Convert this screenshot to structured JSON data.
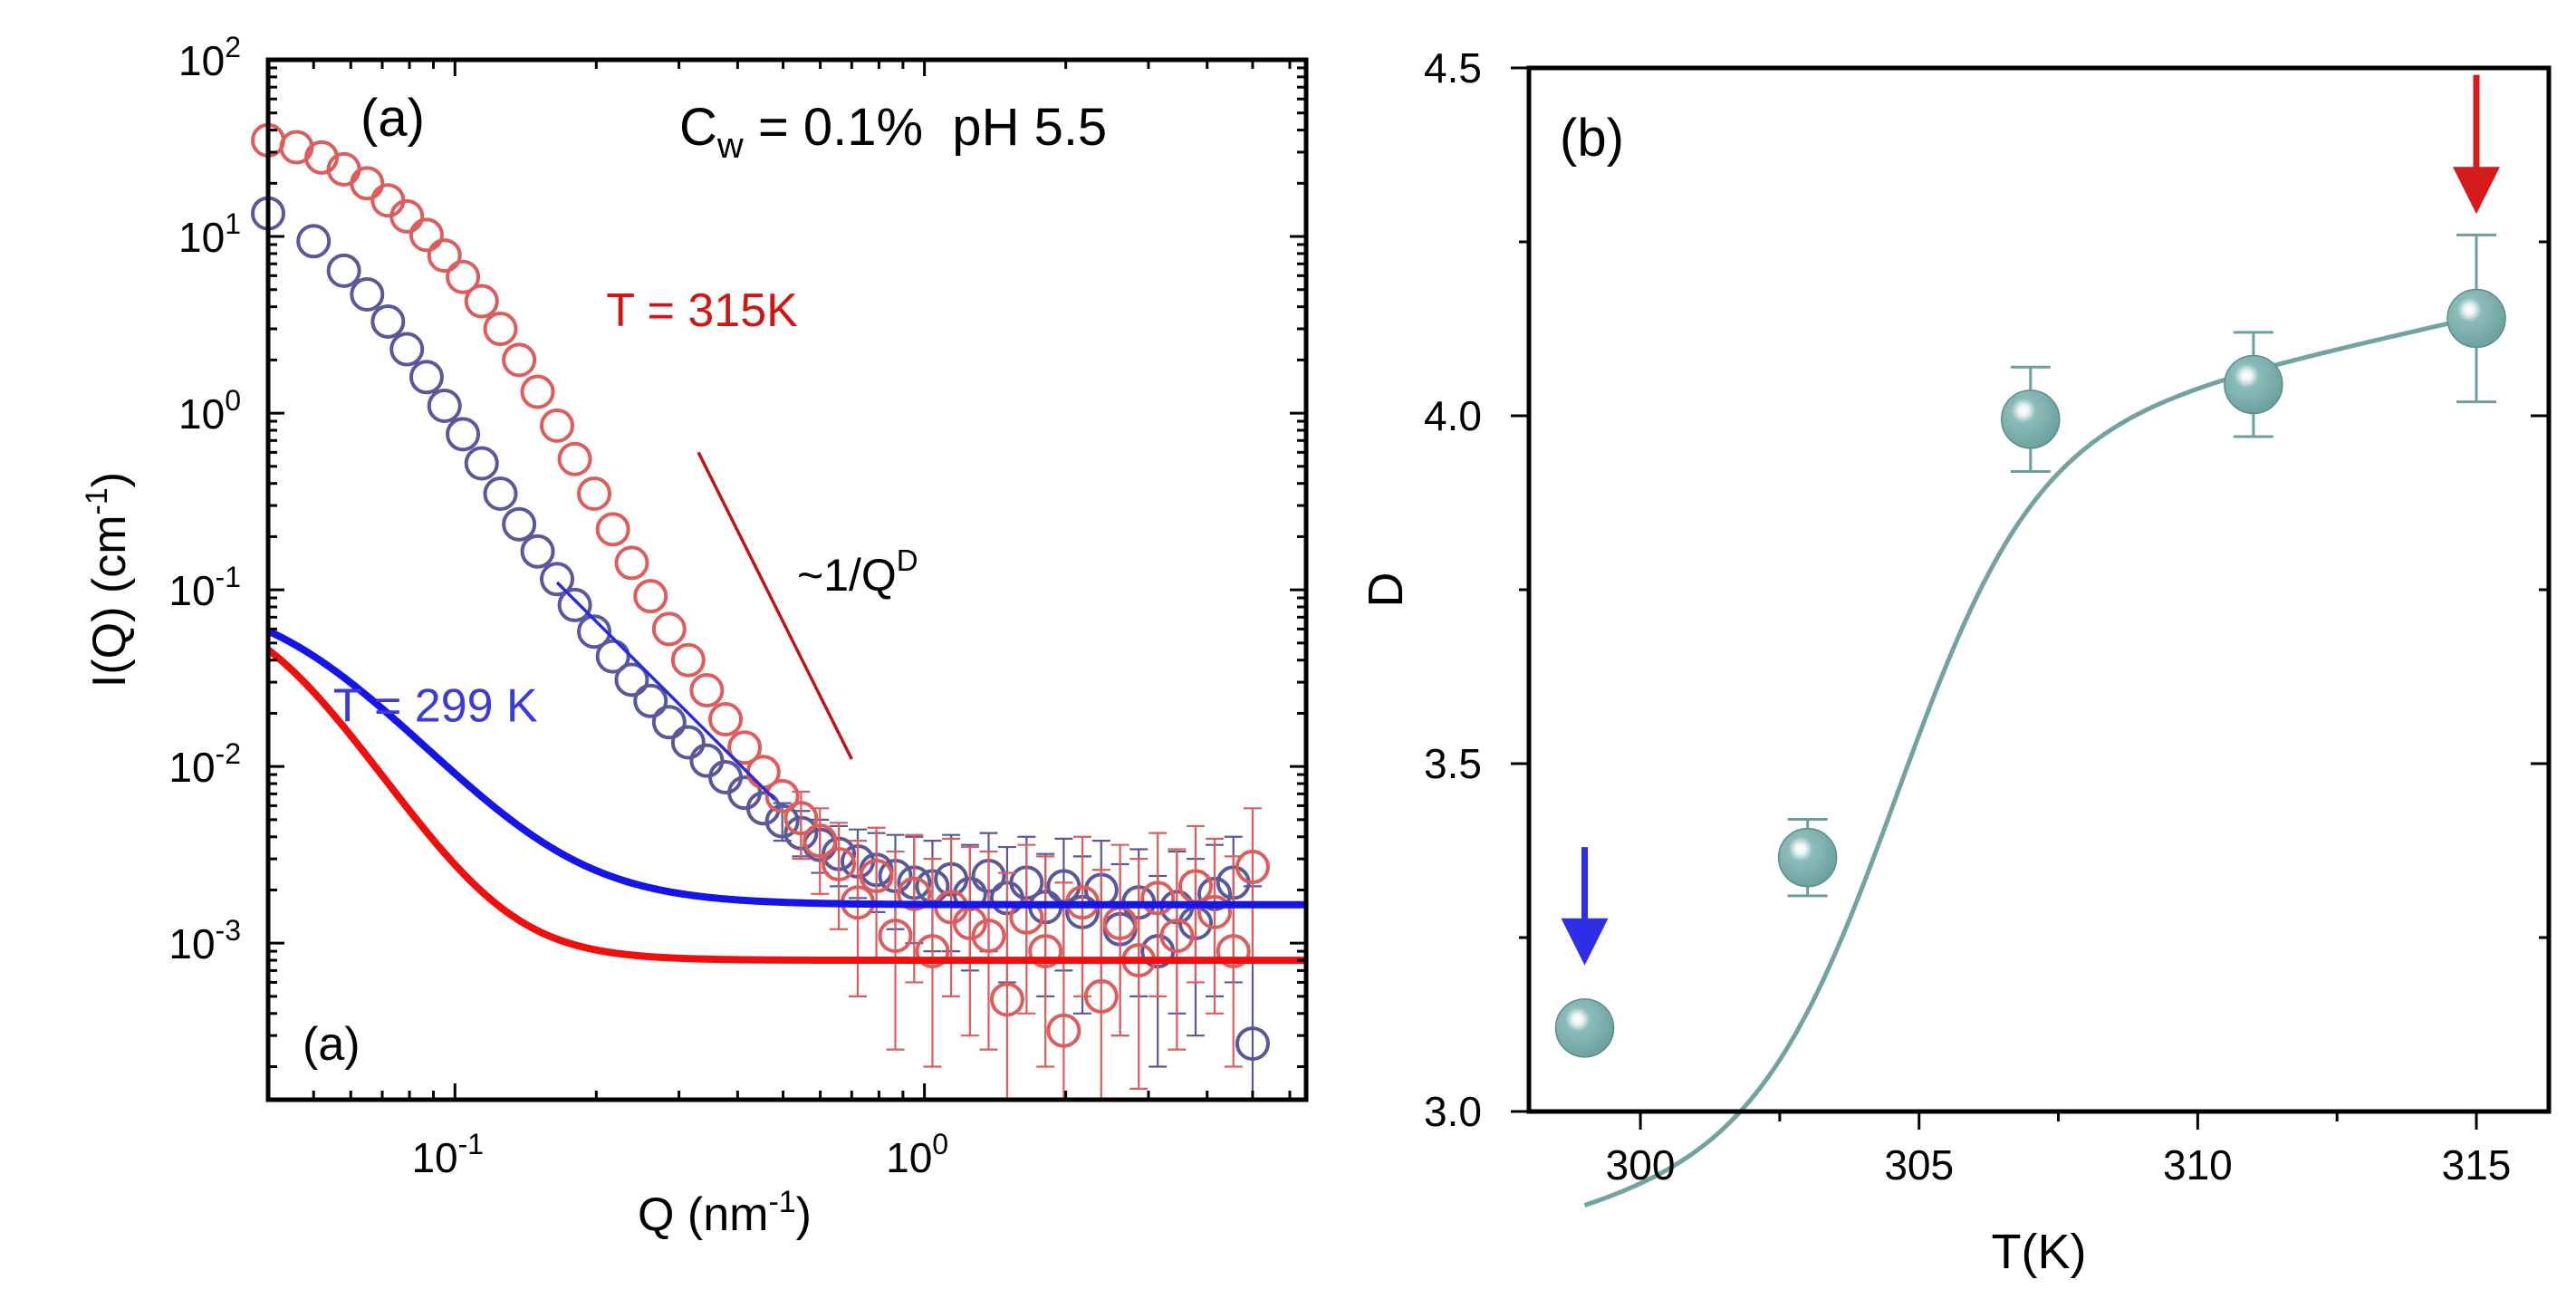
{
  "chart_data": [
    {
      "type": "scatter",
      "panel": "(a)",
      "panel_label": "(a)",
      "panel_label_bottom": "(a)",
      "xscale": "log",
      "yscale": "log",
      "xlabel": "Q (nm",
      "xlabel_sup": "-1",
      "xlabel_end": ")",
      "ylabel": "I(Q) (cm",
      "ylabel_sup": "-1",
      "ylabel_end": ")",
      "xlim": [
        0.04,
        6.5
      ],
      "ylim": [
        0.00013,
        100
      ],
      "xticks": [
        {
          "value": 0.1,
          "base": "10",
          "exp": "-1"
        },
        {
          "value": 1.0,
          "base": "10",
          "exp": "0"
        }
      ],
      "yticks": [
        {
          "value": 100,
          "base": "10",
          "exp": "2"
        },
        {
          "value": 10,
          "base": "10",
          "exp": "1"
        },
        {
          "value": 1,
          "base": "10",
          "exp": "0"
        },
        {
          "value": 0.1,
          "base": "10",
          "exp": "-1"
        },
        {
          "value": 0.01,
          "base": "10",
          "exp": "-2"
        },
        {
          "value": 0.001,
          "base": "10",
          "exp": "-3"
        }
      ],
      "annotation_conditions": {
        "c": "C",
        "sub": "w",
        "rest": " = 0.1%  pH 5.5"
      },
      "annotation_slope": {
        "text": "~1/Q",
        "sup": "D"
      },
      "series": [
        {
          "name": "T = 299 K",
          "label": "T = 299 K",
          "color": "#3b3bd9",
          "marker_color": "#58589a",
          "fit_color": "#1515e8",
          "guide_color": "#2b2bdb",
          "fit": {
            "A": 0.00165,
            "B": 0.095,
            "R": 22,
            "D": 3.12
          },
          "guide": {
            "x": [
              0.165,
              0.48
            ],
            "y": [
              0.11,
              0.0065
            ]
          },
          "label_pos": {
            "x": 0.055,
            "y": 0.018
          },
          "points": [
            {
              "x": 0.04,
              "y": 13.5
            },
            {
              "x": 0.05,
              "y": 9.4
            },
            {
              "x": 0.058,
              "y": 6.4
            },
            {
              "x": 0.065,
              "y": 4.7
            },
            {
              "x": 0.072,
              "y": 3.3
            },
            {
              "x": 0.079,
              "y": 2.3
            },
            {
              "x": 0.087,
              "y": 1.6
            },
            {
              "x": 0.095,
              "y": 1.1
            },
            {
              "x": 0.104,
              "y": 0.76
            },
            {
              "x": 0.114,
              "y": 0.52
            },
            {
              "x": 0.125,
              "y": 0.35
            },
            {
              "x": 0.137,
              "y": 0.235
            },
            {
              "x": 0.15,
              "y": 0.165
            },
            {
              "x": 0.165,
              "y": 0.115
            },
            {
              "x": 0.18,
              "y": 0.082
            },
            {
              "x": 0.198,
              "y": 0.058
            },
            {
              "x": 0.217,
              "y": 0.042
            },
            {
              "x": 0.238,
              "y": 0.031
            },
            {
              "x": 0.261,
              "y": 0.0235
            },
            {
              "x": 0.286,
              "y": 0.0178
            },
            {
              "x": 0.314,
              "y": 0.0137
            },
            {
              "x": 0.344,
              "y": 0.0108
            },
            {
              "x": 0.377,
              "y": 0.0087
            },
            {
              "x": 0.414,
              "y": 0.0071
            },
            {
              "x": 0.454,
              "y": 0.0058
            },
            {
              "x": 0.498,
              "y": 0.0049,
              "err": [
                0.0038,
                0.0062
              ]
            },
            {
              "x": 0.546,
              "y": 0.0042,
              "err": [
                0.0031,
                0.0056
              ]
            },
            {
              "x": 0.599,
              "y": 0.0036,
              "err": [
                0.0025,
                0.005
              ]
            },
            {
              "x": 0.657,
              "y": 0.0032,
              "err": [
                0.0021,
                0.0046
              ]
            },
            {
              "x": 0.721,
              "y": 0.0029,
              "err": [
                0.0018,
                0.0044
              ]
            },
            {
              "x": 0.79,
              "y": 0.0026,
              "err": [
                0.0015,
                0.0042
              ]
            },
            {
              "x": 0.867,
              "y": 0.0024,
              "err": [
                0.0012,
                0.0041
              ]
            },
            {
              "x": 0.951,
              "y": 0.0022,
              "err": [
                0.001,
                0.004
              ]
            },
            {
              "x": 1.04,
              "y": 0.0021,
              "err": [
                0.0009,
                0.0038
              ]
            },
            {
              "x": 1.14,
              "y": 0.0023,
              "err": [
                0.0009,
                0.0041
              ]
            },
            {
              "x": 1.25,
              "y": 0.0019,
              "err": [
                0.0007,
                0.0036
              ]
            },
            {
              "x": 1.37,
              "y": 0.0024,
              "err": [
                0.0009,
                0.0042
              ]
            },
            {
              "x": 1.5,
              "y": 0.0018,
              "err": [
                0.0006,
                0.0035
              ]
            },
            {
              "x": 1.65,
              "y": 0.0022,
              "err": [
                0.0008,
                0.004
              ]
            },
            {
              "x": 1.81,
              "y": 0.0016,
              "err": [
                0.0005,
                0.0032
              ]
            },
            {
              "x": 1.98,
              "y": 0.0021,
              "err": [
                0.0007,
                0.0039
              ]
            },
            {
              "x": 2.17,
              "y": 0.0015,
              "err": [
                0.0004,
                0.0031
              ]
            },
            {
              "x": 2.38,
              "y": 0.002,
              "err": [
                0.0006,
                0.0038
              ]
            },
            {
              "x": 2.61,
              "y": 0.0012,
              "err": [
                0.0003,
                0.0028
              ]
            },
            {
              "x": 2.86,
              "y": 0.0017,
              "err": [
                0.0005,
                0.0034
              ]
            },
            {
              "x": 3.14,
              "y": 0.0009,
              "err": [
                0.0002,
                0.0024
              ]
            },
            {
              "x": 3.45,
              "y": 0.0016,
              "err": [
                0.0004,
                0.0033
              ]
            },
            {
              "x": 3.78,
              "y": 0.0013,
              "err": [
                0.0003,
                0.003
              ]
            },
            {
              "x": 4.15,
              "y": 0.0019,
              "err": [
                0.0005,
                0.0036
              ]
            },
            {
              "x": 4.55,
              "y": 0.0022,
              "err": [
                0.0006,
                0.004
              ]
            },
            {
              "x": 5.0,
              "y": 0.00027,
              "err": [
                0.00013,
                0.0021
              ]
            }
          ]
        },
        {
          "name": "T = 315K",
          "label": "T = 315K",
          "color": "#d11414",
          "marker_color": "#dd5c5c",
          "fit_color": "#f00f0f",
          "guide_color": "#c01616",
          "fit": {
            "A": 0.0008,
            "B": 0.09,
            "R": 25,
            "D": 4.14
          },
          "guide": {
            "x": [
              0.33,
              0.7
            ],
            "y": [
              0.6,
              0.011
            ]
          },
          "label_pos": {
            "x": 0.21,
            "y": 3.1
          },
          "points": [
            {
              "x": 0.04,
              "y": 35
            },
            {
              "x": 0.046,
              "y": 32
            },
            {
              "x": 0.052,
              "y": 28
            },
            {
              "x": 0.058,
              "y": 24
            },
            {
              "x": 0.065,
              "y": 20
            },
            {
              "x": 0.072,
              "y": 16
            },
            {
              "x": 0.079,
              "y": 13
            },
            {
              "x": 0.087,
              "y": 10.2
            },
            {
              "x": 0.095,
              "y": 7.8
            },
            {
              "x": 0.104,
              "y": 5.9
            },
            {
              "x": 0.114,
              "y": 4.3
            },
            {
              "x": 0.125,
              "y": 3.0
            },
            {
              "x": 0.137,
              "y": 2.0
            },
            {
              "x": 0.15,
              "y": 1.32
            },
            {
              "x": 0.165,
              "y": 0.85
            },
            {
              "x": 0.18,
              "y": 0.55
            },
            {
              "x": 0.198,
              "y": 0.35
            },
            {
              "x": 0.217,
              "y": 0.22
            },
            {
              "x": 0.238,
              "y": 0.142
            },
            {
              "x": 0.261,
              "y": 0.092
            },
            {
              "x": 0.286,
              "y": 0.06
            },
            {
              "x": 0.314,
              "y": 0.04
            },
            {
              "x": 0.344,
              "y": 0.027
            },
            {
              "x": 0.377,
              "y": 0.0185
            },
            {
              "x": 0.414,
              "y": 0.0128
            },
            {
              "x": 0.454,
              "y": 0.0093
            },
            {
              "x": 0.498,
              "y": 0.0068
            },
            {
              "x": 0.546,
              "y": 0.0051,
              "err": [
                0.003,
                0.0072
              ]
            },
            {
              "x": 0.599,
              "y": 0.0038,
              "err": [
                0.0019,
                0.0058
              ]
            },
            {
              "x": 0.657,
              "y": 0.0028,
              "err": [
                0.0012,
                0.0048
              ]
            },
            {
              "x": 0.721,
              "y": 0.0017,
              "err": [
                0.0005,
                0.0038
              ]
            },
            {
              "x": 0.79,
              "y": 0.0024,
              "err": [
                0.0008,
                0.0045
              ]
            },
            {
              "x": 0.867,
              "y": 0.0011,
              "err": [
                0.00025,
                0.0033
              ]
            },
            {
              "x": 0.951,
              "y": 0.0019,
              "err": [
                0.0006,
                0.0041
              ]
            },
            {
              "x": 1.04,
              "y": 0.0009,
              "err": [
                0.0002,
                0.003
              ]
            },
            {
              "x": 1.14,
              "y": 0.0016,
              "err": [
                0.0005,
                0.0039
              ]
            },
            {
              "x": 1.25,
              "y": 0.0013,
              "err": [
                0.0003,
                0.0035
              ]
            },
            {
              "x": 1.37,
              "y": 0.0011,
              "err": [
                0.00025,
                0.0033
              ]
            },
            {
              "x": 1.5,
              "y": 0.00048,
              "err": [
                0.00013,
                0.0025
              ]
            },
            {
              "x": 1.65,
              "y": 0.0014,
              "err": [
                0.0004,
                0.0036
              ]
            },
            {
              "x": 1.81,
              "y": 0.0009,
              "err": [
                0.0002,
                0.0031
              ]
            },
            {
              "x": 1.98,
              "y": 0.00032,
              "err": [
                0.00013,
                0.0022
              ]
            },
            {
              "x": 2.17,
              "y": 0.0017,
              "err": [
                0.0005,
                0.004
              ]
            },
            {
              "x": 2.38,
              "y": 0.0005,
              "err": [
                0.00013,
                0.0026
              ]
            },
            {
              "x": 2.61,
              "y": 0.0013,
              "err": [
                0.0003,
                0.0036
              ]
            },
            {
              "x": 2.86,
              "y": 0.0008,
              "err": [
                0.00015,
                0.003
              ]
            },
            {
              "x": 3.14,
              "y": 0.0018,
              "err": [
                0.0005,
                0.0042
              ]
            },
            {
              "x": 3.45,
              "y": 0.0011,
              "err": [
                0.00025,
                0.0034
              ]
            },
            {
              "x": 3.78,
              "y": 0.0021,
              "err": [
                0.0006,
                0.0046
              ]
            },
            {
              "x": 4.15,
              "y": 0.0015,
              "err": [
                0.0004,
                0.0039
              ]
            },
            {
              "x": 4.55,
              "y": 0.0009,
              "err": [
                0.0002,
                0.0031
              ]
            },
            {
              "x": 5.0,
              "y": 0.0027,
              "err": [
                0.0008,
                0.0058
              ]
            }
          ]
        }
      ]
    },
    {
      "type": "scatter",
      "panel": "(b)",
      "panel_label": "(b)",
      "xlabel": "T(K)",
      "ylabel": "D",
      "xlim": [
        298,
        316.3
      ],
      "ylim": [
        3.0,
        4.5
      ],
      "xticks": [
        300,
        305,
        310,
        315
      ],
      "xtick_labels": [
        "300",
        "305",
        "310",
        "315"
      ],
      "xminor": [
        302.5,
        307.5,
        312.5
      ],
      "yticks": [
        3.0,
        3.5,
        4.0,
        4.5
      ],
      "ytick_labels": [
        "3.0",
        "3.5",
        "4.0",
        "4.5"
      ],
      "yminor": [
        3.25,
        3.75,
        4.25
      ],
      "marker_color": "#6a9f9c",
      "line_color": "#72a3a1",
      "points": [
        {
          "x": 299,
          "y": 3.12,
          "err": 0.03
        },
        {
          "x": 303,
          "y": 3.365,
          "err": 0.055
        },
        {
          "x": 307,
          "y": 3.995,
          "err": 0.075
        },
        {
          "x": 311,
          "y": 4.045,
          "err": 0.075
        },
        {
          "x": 315,
          "y": 4.14,
          "err": 0.12
        }
      ],
      "fit": {
        "A1": 3.07,
        "A2": 4.07,
        "x0": 304.6,
        "dx": 1.25,
        "slope": 0.018,
        "xref": 311
      },
      "arrows": [
        {
          "x": 299,
          "y_from": 3.38,
          "y_to": 3.21,
          "color": "#2e2ee6"
        },
        {
          "x": 315,
          "y_from": 4.49,
          "y_to": 4.29,
          "color": "#d41c1c"
        }
      ]
    }
  ]
}
